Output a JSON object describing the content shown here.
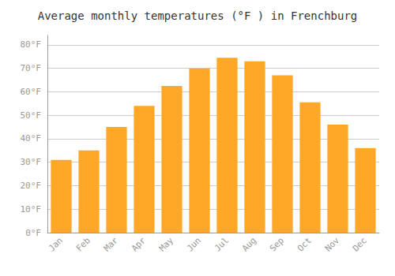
{
  "chart_data": {
    "type": "bar",
    "title": "Average monthly temperatures (°F ) in Frenchburg",
    "categories": [
      "Jan",
      "Feb",
      "Mar",
      "Apr",
      "May",
      "Jun",
      "Jul",
      "Aug",
      "Sep",
      "Oct",
      "Nov",
      "Dec"
    ],
    "values": [
      31,
      35,
      45,
      54,
      62.5,
      70,
      74.5,
      73,
      67,
      55.5,
      46,
      36
    ],
    "color": "#FFA726",
    "ylim": [
      0,
      84
    ],
    "yticks": [
      {
        "value": 0,
        "label": "0°F"
      },
      {
        "value": 10,
        "label": "10°F"
      },
      {
        "value": 20,
        "label": "20°F"
      },
      {
        "value": 30,
        "label": "30°F"
      },
      {
        "value": 40,
        "label": "40°F"
      },
      {
        "value": 50,
        "label": "50°F"
      },
      {
        "value": 60,
        "label": "60°F"
      },
      {
        "value": 70,
        "label": "70°F"
      },
      {
        "value": 80,
        "label": "80°F"
      }
    ],
    "grid": true
  }
}
